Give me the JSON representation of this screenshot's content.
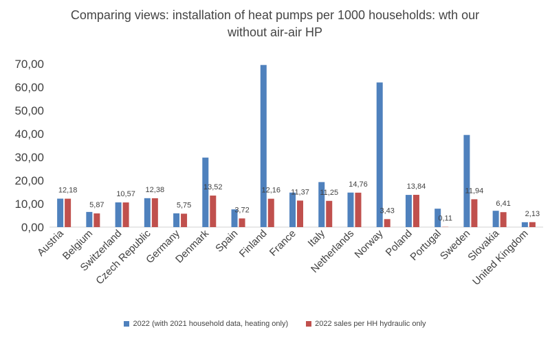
{
  "chart_data": {
    "type": "bar",
    "title_line1": "Comparing views: installation of heat pumps per 1000 households: wth our",
    "title_line2": "without air-air HP",
    "categories": [
      "Austria",
      "Belgium",
      "Switzerland",
      "Czech Republic",
      "Germany",
      "Denmark",
      "Spain",
      "Finland",
      "France",
      "Italy",
      "Netherlands",
      "Norway",
      "Poland",
      "Portugal",
      "Sweden",
      "Slovakia",
      "United Kingdom"
    ],
    "series": [
      {
        "name": "2022 (with 2021 household data, heating only)",
        "color": "#4f81bd",
        "values": [
          12.2,
          6.5,
          10.6,
          12.4,
          5.9,
          29.8,
          7.6,
          69.5,
          14.8,
          19.3,
          14.8,
          62.0,
          13.8,
          7.9,
          39.5,
          7.0,
          2.1
        ]
      },
      {
        "name": "2022 sales per HH hydraulic only",
        "color": "#c0504d",
        "values": [
          12.18,
          5.87,
          10.57,
          12.38,
          5.75,
          13.52,
          3.72,
          12.16,
          11.37,
          11.25,
          14.76,
          3.43,
          13.84,
          0.11,
          11.94,
          6.41,
          2.13
        ],
        "labels": [
          "12,18",
          "5,87",
          "10,57",
          "12,38",
          "5,75",
          "13,52",
          "3,72",
          "12,16",
          "11,37",
          "11,25",
          "14,76",
          "3,43",
          "13,84",
          "0,11",
          "11,94",
          "6,41",
          "2,13"
        ]
      }
    ],
    "yticks": [
      "0,00",
      "10,00",
      "20,00",
      "30,00",
      "40,00",
      "50,00",
      "60,00",
      "70,00"
    ],
    "ylim": [
      0,
      70
    ],
    "grid": false,
    "legend_position": "bottom"
  }
}
